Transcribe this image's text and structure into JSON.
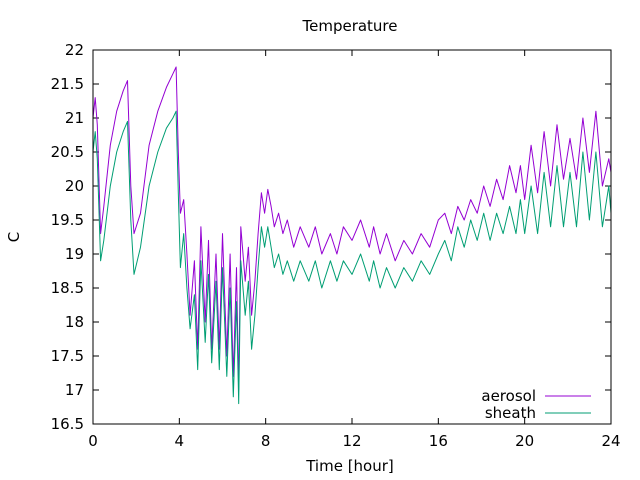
{
  "chart_data": {
    "type": "line",
    "title": "Temperature",
    "xlabel": "Time [hour]",
    "ylabel": "C",
    "xlim": [
      0,
      24
    ],
    "ylim": [
      16.5,
      22
    ],
    "xticks": [
      0,
      4,
      8,
      12,
      16,
      20,
      24
    ],
    "yticks": [
      16.5,
      17,
      17.5,
      18,
      18.5,
      19,
      19.5,
      20,
      20.5,
      21,
      21.5,
      22
    ],
    "grid": false,
    "legend_position": "bottom-right",
    "series": [
      {
        "name": "aerosol",
        "color": "#9400d3",
        "x": [
          0,
          0.1,
          0.2,
          0.35,
          0.5,
          0.8,
          1.1,
          1.4,
          1.6,
          1.75,
          1.9,
          2.2,
          2.6,
          3.0,
          3.4,
          3.7,
          3.85,
          3.95,
          4.05,
          4.2,
          4.35,
          4.5,
          4.7,
          4.85,
          5.0,
          5.2,
          5.35,
          5.5,
          5.7,
          5.85,
          6.0,
          6.2,
          6.35,
          6.5,
          6.65,
          6.75,
          6.85,
          7.05,
          7.2,
          7.35,
          7.5,
          7.65,
          7.8,
          7.95,
          8.1,
          8.25,
          8.4,
          8.6,
          8.8,
          9.0,
          9.3,
          9.6,
          10.0,
          10.3,
          10.6,
          11.0,
          11.3,
          11.6,
          12.0,
          12.4,
          12.8,
          13.0,
          13.3,
          13.6,
          14.0,
          14.4,
          14.8,
          15.2,
          15.6,
          16.0,
          16.3,
          16.6,
          16.9,
          17.2,
          17.5,
          17.8,
          18.1,
          18.4,
          18.7,
          19.0,
          19.3,
          19.6,
          19.8,
          20.0,
          20.3,
          20.6,
          20.9,
          21.2,
          21.5,
          21.8,
          22.1,
          22.4,
          22.7,
          23.0,
          23.3,
          23.6,
          23.9,
          24.0
        ],
        "y": [
          21.0,
          21.3,
          20.9,
          19.3,
          19.7,
          20.6,
          21.1,
          21.4,
          21.55,
          20.0,
          19.3,
          19.6,
          20.6,
          21.1,
          21.45,
          21.65,
          21.75,
          20.5,
          19.6,
          19.8,
          19.0,
          18.1,
          18.9,
          17.6,
          19.4,
          18.0,
          19.2,
          17.6,
          19.0,
          17.6,
          19.3,
          17.5,
          19.0,
          17.2,
          18.8,
          17.0,
          19.4,
          18.6,
          19.1,
          18.1,
          18.6,
          19.3,
          19.9,
          19.6,
          19.95,
          19.7,
          19.4,
          19.6,
          19.3,
          19.5,
          19.1,
          19.4,
          19.1,
          19.4,
          19.0,
          19.3,
          19.0,
          19.4,
          19.2,
          19.5,
          19.1,
          19.4,
          19.0,
          19.3,
          18.9,
          19.2,
          19.0,
          19.3,
          19.1,
          19.5,
          19.6,
          19.3,
          19.7,
          19.5,
          19.8,
          19.6,
          20.0,
          19.7,
          20.1,
          19.8,
          20.3,
          19.9,
          20.3,
          19.8,
          20.6,
          19.9,
          20.8,
          20.0,
          20.9,
          20.1,
          20.7,
          20.1,
          21.0,
          20.2,
          21.1,
          20.0,
          20.4,
          20.2
        ]
      },
      {
        "name": "sheath",
        "color": "#009e73",
        "x": [
          0,
          0.1,
          0.2,
          0.35,
          0.5,
          0.8,
          1.1,
          1.4,
          1.6,
          1.75,
          1.9,
          2.2,
          2.6,
          3.0,
          3.4,
          3.7,
          3.85,
          3.95,
          4.05,
          4.2,
          4.35,
          4.5,
          4.7,
          4.85,
          5.0,
          5.2,
          5.35,
          5.5,
          5.7,
          5.85,
          6.0,
          6.2,
          6.35,
          6.5,
          6.65,
          6.75,
          6.85,
          7.05,
          7.2,
          7.35,
          7.5,
          7.65,
          7.8,
          7.95,
          8.1,
          8.25,
          8.4,
          8.6,
          8.8,
          9.0,
          9.3,
          9.6,
          10.0,
          10.3,
          10.6,
          11.0,
          11.3,
          11.6,
          12.0,
          12.4,
          12.8,
          13.0,
          13.3,
          13.6,
          14.0,
          14.4,
          14.8,
          15.2,
          15.6,
          16.0,
          16.3,
          16.6,
          16.9,
          17.2,
          17.5,
          17.8,
          18.1,
          18.4,
          18.7,
          19.0,
          19.3,
          19.6,
          19.8,
          20.0,
          20.3,
          20.6,
          20.9,
          21.2,
          21.5,
          21.8,
          22.1,
          22.4,
          22.7,
          23.0,
          23.3,
          23.6,
          23.9,
          24.0
        ],
        "y": [
          20.5,
          20.8,
          20.4,
          18.9,
          19.2,
          20.0,
          20.5,
          20.8,
          20.95,
          19.5,
          18.7,
          19.1,
          20.0,
          20.5,
          20.85,
          21.0,
          21.1,
          19.9,
          18.8,
          19.3,
          18.5,
          17.9,
          18.4,
          17.3,
          18.9,
          17.7,
          18.7,
          17.4,
          18.6,
          17.3,
          18.8,
          17.2,
          18.5,
          16.9,
          18.3,
          16.8,
          18.9,
          18.1,
          18.6,
          17.6,
          18.1,
          18.8,
          19.4,
          19.1,
          19.4,
          19.1,
          18.8,
          19.0,
          18.7,
          18.9,
          18.6,
          18.9,
          18.6,
          18.9,
          18.5,
          18.9,
          18.6,
          18.9,
          18.7,
          19.0,
          18.6,
          18.9,
          18.5,
          18.8,
          18.5,
          18.8,
          18.6,
          18.9,
          18.7,
          19.0,
          19.2,
          18.9,
          19.4,
          19.1,
          19.5,
          19.2,
          19.6,
          19.2,
          19.6,
          19.3,
          19.7,
          19.3,
          19.8,
          19.3,
          20.0,
          19.3,
          20.2,
          19.4,
          20.3,
          19.4,
          20.2,
          19.4,
          20.5,
          19.5,
          20.5,
          19.4,
          20.0,
          19.6
        ]
      }
    ]
  }
}
